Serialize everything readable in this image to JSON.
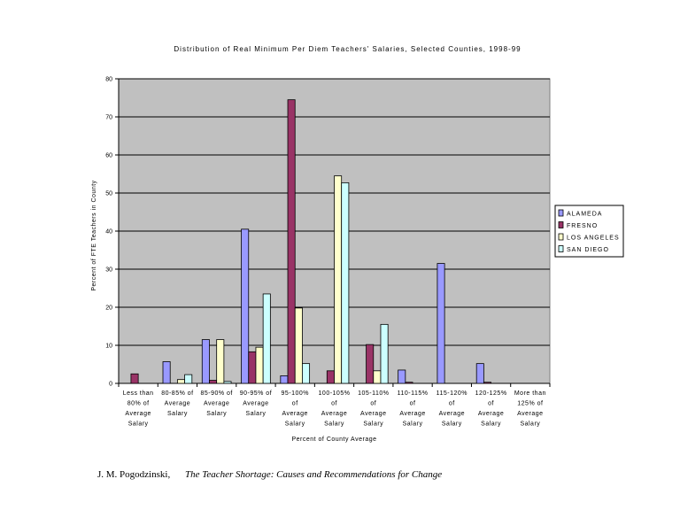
{
  "chart_data": {
    "type": "bar",
    "title": "Distribution of Real Minimum Per Diem Teachers' Salaries, Selected Counties, 1998-99",
    "xlabel": "Percent of County Average",
    "ylabel": "Percent of FTE Teachers in County",
    "ylim": [
      0,
      80
    ],
    "yticks": [
      0,
      10,
      20,
      30,
      40,
      50,
      60,
      70,
      80
    ],
    "grid": true,
    "legend_position": "right",
    "plot_background": "#c0c0c0",
    "categories": [
      [
        "Less than",
        "80% of",
        "Average",
        "Salary"
      ],
      [
        "80-85% of",
        "Average",
        "Salary"
      ],
      [
        "85-90% of",
        "Average",
        "Salary"
      ],
      [
        "90-95% of",
        "Average",
        "Salary"
      ],
      [
        "95-100%",
        "of",
        "Average",
        "Salary"
      ],
      [
        "100-105%",
        "of",
        "Average",
        "Salary"
      ],
      [
        "105-110%",
        "of",
        "Average",
        "Salary"
      ],
      [
        "110-115%",
        "of",
        "Average",
        "Salary"
      ],
      [
        "115-120%",
        "of",
        "Average",
        "Salary"
      ],
      [
        "120-125%",
        "of",
        "Average",
        "Salary"
      ],
      [
        "More than",
        "125% of",
        "Average",
        "Salary"
      ]
    ],
    "series": [
      {
        "name": "ALAMEDA",
        "color": "#9999ff",
        "values": [
          0,
          5.7,
          11.5,
          40.5,
          2,
          0,
          0,
          3.5,
          31.5,
          5.2,
          0
        ]
      },
      {
        "name": "FRESNO",
        "color": "#993366",
        "values": [
          2.5,
          0,
          0.8,
          8.3,
          74.5,
          3.3,
          10.2,
          0.3,
          0,
          0.3,
          0
        ]
      },
      {
        "name": "LOS ANGELES",
        "color": "#ffffcc",
        "values": [
          0,
          1,
          11.5,
          9.5,
          19.8,
          54.5,
          3.3,
          0,
          0,
          0,
          0
        ]
      },
      {
        "name": "SAN DIEGO",
        "color": "#ccffff",
        "values": [
          0,
          2.3,
          0.5,
          23.5,
          5.2,
          52.7,
          15.5,
          0,
          0,
          0,
          0
        ]
      }
    ]
  },
  "footer": {
    "author": "J. M. Pogodzinski,",
    "book": "The Teacher Shortage: Causes and Recommendations for Change"
  }
}
